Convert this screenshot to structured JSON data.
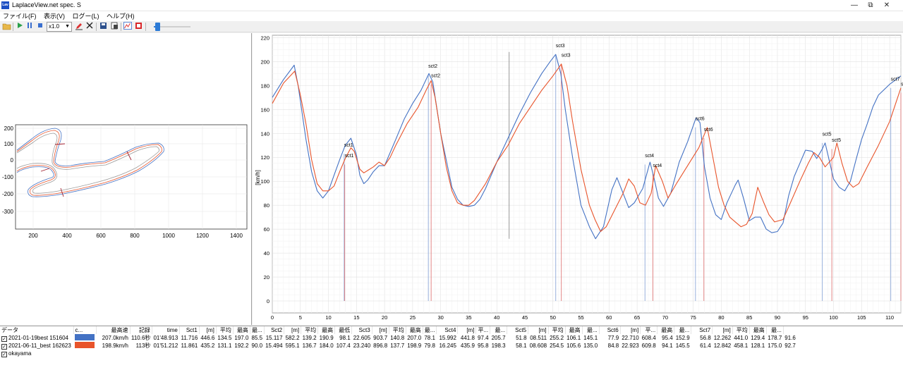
{
  "window": {
    "icon_text": "Lav",
    "title": "LaplaceView.net spec. S",
    "minimize": "—",
    "maximize": "⧉",
    "close": "✕"
  },
  "menu": [
    {
      "label": "ファイル(F)"
    },
    {
      "label": "表示(V)"
    },
    {
      "label": "ログー(L)"
    },
    {
      "label": "ヘルプ(H)"
    }
  ],
  "toolbar": {
    "icons": [
      "folder-open-icon",
      "play-icon",
      "pause-icon",
      "stop-icon",
      "edit-icon",
      "delete-icon",
      "save-icon",
      "export-icon",
      "graph-icon",
      "pdf-icon"
    ],
    "speed_value": "x1.0",
    "playback_position": 0.1
  },
  "colors": {
    "lap1": "#4472c4",
    "lap2": "#e8542b",
    "sector_line_lap1": "#8fa9d9",
    "sector_line_lap2": "#e07a7a"
  },
  "track_map": {
    "x_ticks": [
      "200",
      "400",
      "600",
      "800",
      "1000",
      "1200",
      "1400"
    ],
    "y_ticks": [
      "200",
      "100",
      "0",
      "-100",
      "-200",
      "-300"
    ]
  },
  "chart_data": {
    "type": "line",
    "ylabel": "[km/h]",
    "xlim": [
      0,
      112
    ],
    "ylim": [
      -10,
      222
    ],
    "x_ticks": [
      0,
      5,
      10,
      15,
      20,
      25,
      30,
      35,
      40,
      45,
      50,
      55,
      60,
      65,
      70,
      75,
      80,
      85,
      90,
      95,
      100,
      105,
      110
    ],
    "y_ticks": [
      0,
      20,
      40,
      60,
      80,
      100,
      120,
      140,
      160,
      180,
      200,
      220
    ],
    "grid": true,
    "cursor_x": 42.2,
    "series": [
      {
        "name": "2021-01-19best 151604",
        "color": "#4472c4",
        "points": [
          [
            0,
            170
          ],
          [
            2,
            185
          ],
          [
            3.9,
            197
          ],
          [
            4.6,
            180
          ],
          [
            6,
            135
          ],
          [
            7,
            108
          ],
          [
            8,
            92
          ],
          [
            9,
            86
          ],
          [
            10,
            92
          ],
          [
            11,
            105
          ],
          [
            12,
            118
          ],
          [
            13,
            130
          ],
          [
            14,
            136
          ],
          [
            15,
            122
          ],
          [
            15.6,
            105
          ],
          [
            16.3,
            98
          ],
          [
            17,
            101
          ],
          [
            18,
            108
          ],
          [
            19,
            113
          ],
          [
            20,
            113
          ],
          [
            22,
            135
          ],
          [
            23.5,
            152
          ],
          [
            25,
            165
          ],
          [
            26.5,
            176
          ],
          [
            27.9,
            190
          ],
          [
            28.6,
            183
          ],
          [
            30,
            140
          ],
          [
            32,
            95
          ],
          [
            33,
            85
          ],
          [
            34,
            80
          ],
          [
            35,
            79
          ],
          [
            36,
            80
          ],
          [
            37,
            85
          ],
          [
            38,
            94
          ],
          [
            40,
            116
          ],
          [
            42,
            136
          ],
          [
            44,
            156
          ],
          [
            46,
            174
          ],
          [
            48,
            190
          ],
          [
            49.5,
            200
          ],
          [
            50.5,
            206
          ],
          [
            51.4,
            190
          ],
          [
            52.2,
            160
          ],
          [
            53.5,
            120
          ],
          [
            55,
            80
          ],
          [
            56.5,
            62
          ],
          [
            57.6,
            52
          ],
          [
            59,
            62
          ],
          [
            60.5,
            93
          ],
          [
            61.4,
            103
          ],
          [
            62.5,
            90
          ],
          [
            63.5,
            78
          ],
          [
            64.5,
            82
          ],
          [
            66,
            94
          ],
          [
            67.3,
            116
          ],
          [
            68,
            103
          ],
          [
            68.8,
            86
          ],
          [
            69.7,
            79
          ],
          [
            71,
            90
          ],
          [
            72.5,
            116
          ],
          [
            74,
            133
          ],
          [
            75.5,
            153
          ],
          [
            76.2,
            149
          ],
          [
            77,
            112
          ],
          [
            78,
            86
          ],
          [
            79,
            72
          ],
          [
            80,
            68
          ],
          [
            81,
            82
          ],
          [
            82.5,
            97
          ],
          [
            83,
            101
          ],
          [
            84,
            85
          ],
          [
            85,
            67
          ],
          [
            86,
            70
          ],
          [
            87,
            70
          ],
          [
            88,
            60
          ],
          [
            89,
            57
          ],
          [
            90,
            58
          ],
          [
            91,
            65
          ],
          [
            92,
            88
          ],
          [
            93,
            104
          ],
          [
            94,
            115
          ],
          [
            95,
            126
          ],
          [
            96.2,
            125
          ],
          [
            97,
            119
          ],
          [
            98,
            127
          ],
          [
            98.5,
            132
          ],
          [
            99,
            122
          ],
          [
            100,
            102
          ],
          [
            101,
            95
          ],
          [
            102,
            92
          ],
          [
            103,
            100
          ],
          [
            104,
            118
          ],
          [
            105,
            135
          ],
          [
            106,
            148
          ],
          [
            107,
            162
          ],
          [
            108,
            172
          ],
          [
            110,
            181
          ],
          [
            112,
            188
          ]
        ]
      },
      {
        "name": "2021-06-11_best 162623",
        "color": "#e8542b",
        "points": [
          [
            0,
            165
          ],
          [
            2,
            182
          ],
          [
            4,
            192
          ],
          [
            5,
            172
          ],
          [
            6,
            148
          ],
          [
            7,
            118
          ],
          [
            8,
            98
          ],
          [
            9,
            92
          ],
          [
            10,
            92
          ],
          [
            11,
            96
          ],
          [
            12,
            108
          ],
          [
            13,
            119
          ],
          [
            14,
            128
          ],
          [
            14.6,
            125
          ],
          [
            15.6,
            110
          ],
          [
            16.3,
            107
          ],
          [
            17,
            109
          ],
          [
            18,
            112
          ],
          [
            19,
            116
          ],
          [
            20,
            113
          ],
          [
            21,
            120
          ],
          [
            22,
            130
          ],
          [
            24,
            148
          ],
          [
            26,
            162
          ],
          [
            27.5,
            177
          ],
          [
            28.3,
            184
          ],
          [
            29,
            170
          ],
          [
            30,
            140
          ],
          [
            31,
            112
          ],
          [
            32,
            92
          ],
          [
            33,
            82
          ],
          [
            34,
            80
          ],
          [
            35,
            80
          ],
          [
            36,
            84
          ],
          [
            38,
            98
          ],
          [
            40,
            116
          ],
          [
            42,
            130
          ],
          [
            44,
            148
          ],
          [
            46,
            162
          ],
          [
            48,
            176
          ],
          [
            50,
            188
          ],
          [
            51.5,
            198
          ],
          [
            52.5,
            180
          ],
          [
            53.5,
            150
          ],
          [
            55,
            110
          ],
          [
            56.5,
            80
          ],
          [
            57.5,
            68
          ],
          [
            58.5,
            58
          ],
          [
            59.5,
            62
          ],
          [
            61,
            76
          ],
          [
            62.5,
            90
          ],
          [
            63.5,
            102
          ],
          [
            64.5,
            96
          ],
          [
            65.5,
            82
          ],
          [
            66.5,
            80
          ],
          [
            67.5,
            90
          ],
          [
            68.3,
            113
          ],
          [
            69.5,
            100
          ],
          [
            70.5,
            86
          ],
          [
            72,
            98
          ],
          [
            74,
            113
          ],
          [
            76,
            128
          ],
          [
            77.5,
            145
          ],
          [
            78.5,
            120
          ],
          [
            79.5,
            95
          ],
          [
            80.5,
            80
          ],
          [
            81.5,
            70
          ],
          [
            82.5,
            66
          ],
          [
            83.5,
            62
          ],
          [
            84.5,
            64
          ],
          [
            85.5,
            73
          ],
          [
            86.5,
            95
          ],
          [
            87.5,
            83
          ],
          [
            88.5,
            72
          ],
          [
            89.5,
            66
          ],
          [
            91,
            68
          ],
          [
            92.5,
            84
          ],
          [
            94,
            100
          ],
          [
            95.5,
            115
          ],
          [
            96.5,
            124
          ],
          [
            97.5,
            120
          ],
          [
            98.5,
            112
          ],
          [
            100,
            120
          ],
          [
            100.6,
            132
          ],
          [
            101.5,
            115
          ],
          [
            102.5,
            100
          ],
          [
            103.5,
            95
          ],
          [
            104.5,
            98
          ],
          [
            106,
            112
          ],
          [
            108,
            130
          ],
          [
            110,
            150
          ],
          [
            112,
            178
          ]
        ]
      }
    ],
    "sector_markers": [
      {
        "label": "sct1",
        "lap1_x": 12.8,
        "lap2_x": 12.9,
        "lap1_y": 129,
        "lap2_y": 120
      },
      {
        "label": "sct2",
        "lap1_x": 27.8,
        "lap2_x": 28.3,
        "lap1_y": 195,
        "lap2_y": 187
      },
      {
        "label": "sct3",
        "lap1_x": 50.5,
        "lap2_x": 51.5,
        "lap1_y": 212,
        "lap2_y": 204
      },
      {
        "label": "sct4",
        "lap1_x": 66.4,
        "lap2_x": 67.8,
        "lap1_y": 120,
        "lap2_y": 112
      },
      {
        "label": "sct6",
        "lap1_x": 75.4,
        "lap2_x": 76.9,
        "lap1_y": 151,
        "lap2_y": 142
      },
      {
        "label": "sct5",
        "lap1_x": 98.0,
        "lap2_x": 99.7,
        "lap1_y": 138,
        "lap2_y": 133
      },
      {
        "label": "sct7",
        "lap1_x": 110.2,
        "lap2_x": 112.0,
        "lap1_y": 184,
        "lap2_y": 180
      }
    ]
  },
  "table": {
    "headers": [
      "データ",
      "c...",
      "最高速",
      "記録",
      "time",
      "Sct1",
      "[m]",
      "平均",
      "最高",
      "最...",
      "Sct2",
      "[m]",
      "平均",
      "最高",
      "最低",
      "Sct3",
      "[m]",
      "平均",
      "最高",
      "最...",
      "Sct4",
      "[m]",
      "平...",
      "最...",
      "Sct5",
      "[m]",
      "平均",
      "最高",
      "最...",
      "Sct6",
      "[m]",
      "平...",
      "最高",
      "最...",
      "Sct7",
      "[m]",
      "平均",
      "最高",
      "最..."
    ],
    "rows": [
      {
        "checked": true,
        "name": "2021-01-19best 151604",
        "color": "#4472c4",
        "cells": [
          "207.0km/h",
          "110.6秒",
          "01'48.913",
          "11.716",
          "446.6",
          "134.5",
          "197.0",
          "85.5",
          "15.117",
          "582.2",
          "139.2",
          "190.9",
          "98.1",
          "22.605",
          "903.7",
          "140.8",
          "207.0",
          "78.1",
          "15.992",
          "441.8",
          "97.4",
          "205.7",
          "51.8",
          "08.511",
          "255.2",
          "106.1",
          "145.1",
          "77.9",
          "22.710",
          "608.4",
          "95.4",
          "152.9",
          "56.8",
          "12.262",
          "441.0",
          "129.4",
          "178.7",
          "91.6"
        ]
      },
      {
        "checked": true,
        "name": "2021-06-11_best 162623",
        "color": "#e8542b",
        "cells": [
          "198.9km/h",
          "113秒",
          "01'51.212",
          "11.861",
          "435.2",
          "131.1",
          "192.2",
          "90.0",
          "15.494",
          "595.1",
          "136.7",
          "184.0",
          "107.4",
          "23.240",
          "896.8",
          "137.7",
          "198.9",
          "79.8",
          "16.245",
          "435.9",
          "95.8",
          "198.3",
          "58.1",
          "08.608",
          "254.5",
          "105.6",
          "135.0",
          "84.8",
          "22.923",
          "609.8",
          "94.1",
          "145.5",
          "61.4",
          "12.842",
          "458.1",
          "128.1",
          "175.0",
          "92.7"
        ]
      },
      {
        "checked": true,
        "name": "okayama",
        "color": "",
        "cells": []
      }
    ]
  }
}
